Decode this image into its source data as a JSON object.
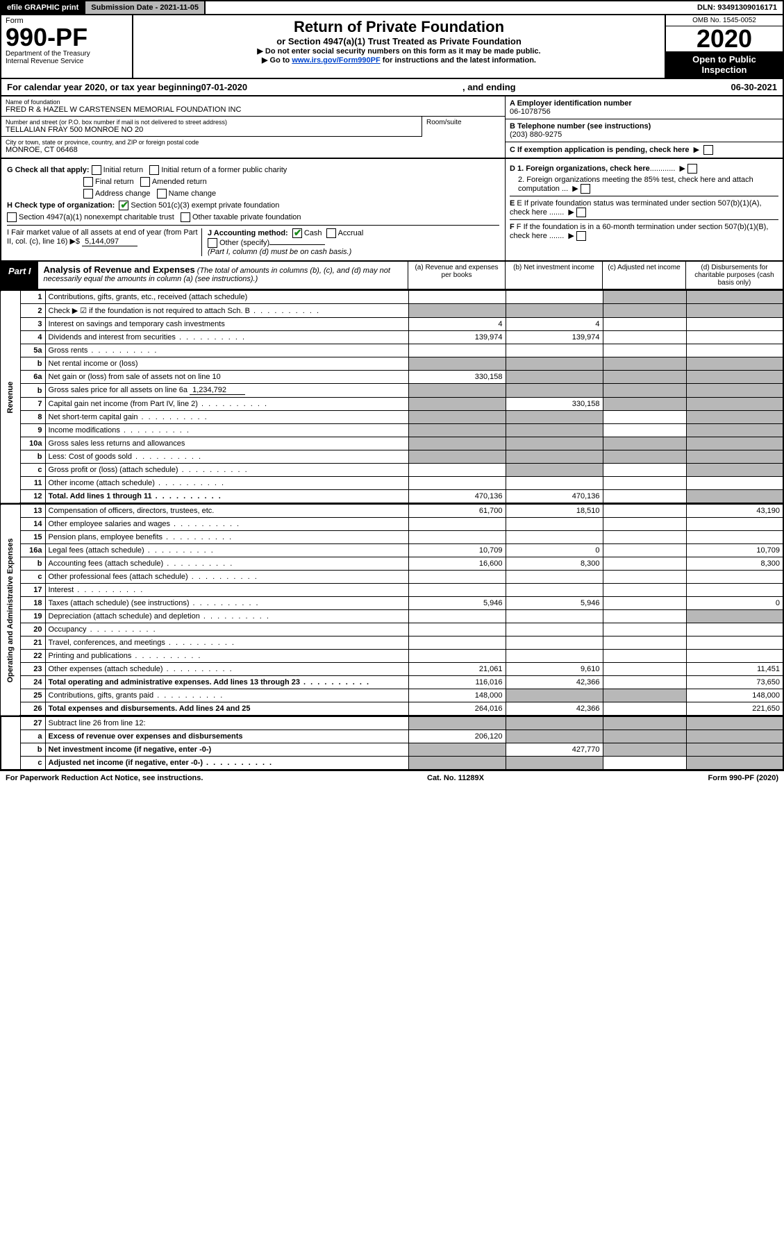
{
  "topbar": {
    "efile": "efile GRAPHIC print",
    "submission_label": "Submission Date - 2021-11-05",
    "dln": "DLN: 93491309016171"
  },
  "header": {
    "form_word": "Form",
    "form_number": "990-PF",
    "dept1": "Department of the Treasury",
    "dept2": "Internal Revenue Service",
    "title": "Return of Private Foundation",
    "subtitle": "or Section 4947(a)(1) Trust Treated as Private Foundation",
    "instr1": "▶ Do not enter social security numbers on this form as it may be made public.",
    "instr2_pre": "▶ Go to ",
    "instr2_link": "www.irs.gov/Form990PF",
    "instr2_post": " for instructions and the latest information.",
    "omb": "OMB No. 1545-0052",
    "year": "2020",
    "open_public": "Open to Public Inspection"
  },
  "calendar": {
    "pre": "For calendar year 2020, or tax year beginning ",
    "begin": "07-01-2020",
    "mid": ", and ending ",
    "end": "06-30-2021"
  },
  "entity": {
    "name_label": "Name of foundation",
    "name": "FRED R & HAZEL W CARSTENSEN MEMORIAL FOUNDATION INC",
    "addr_label": "Number and street (or P.O. box number if mail is not delivered to street address)",
    "addr": "TELLALIAN FRAY 500 MONROE No 20",
    "room_label": "Room/suite",
    "city_label": "City or town, state or province, country, and ZIP or foreign postal code",
    "city": "MONROE, CT  06468",
    "ein_label": "A Employer identification number",
    "ein": "06-1078756",
    "phone_label": "B Telephone number (see instructions)",
    "phone": "(203) 880-9275",
    "c_label": "C If exemption application is pending, check here"
  },
  "checks": {
    "g_label": "G Check all that apply:",
    "g_opts": [
      "Initial return",
      "Initial return of a former public charity",
      "Final return",
      "Amended return",
      "Address change",
      "Name change"
    ],
    "h_label": "H Check type of organization:",
    "h1": "Section 501(c)(3) exempt private foundation",
    "h2": "Section 4947(a)(1) nonexempt charitable trust",
    "h3": "Other taxable private foundation",
    "i_label": "I Fair market value of all assets at end of year (from Part II, col. (c), line 16) ▶$",
    "i_val": "5,144,097",
    "j_label": "J Accounting method:",
    "j_cash": "Cash",
    "j_accrual": "Accrual",
    "j_other": "Other (specify)",
    "j_note": "(Part I, column (d) must be on cash basis.)",
    "d1": "D 1. Foreign organizations, check here",
    "d2": "2. Foreign organizations meeting the 85% test, check here and attach computation ...",
    "e": "E If private foundation status was terminated under section 507(b)(1)(A), check here .......",
    "f": "F If the foundation is in a 60-month termination under section 507(b)(1)(B), check here ......."
  },
  "part1": {
    "label": "Part I",
    "title": "Analysis of Revenue and Expenses",
    "title_note": " (The total of amounts in columns (b), (c), and (d) may not necessarily equal the amounts in column (a) (see instructions).)",
    "cols": {
      "a": "(a) Revenue and expenses per books",
      "b": "(b) Net investment income",
      "c": "(c) Adjusted net income",
      "d": "(d) Disbursements for charitable purposes (cash basis only)"
    }
  },
  "sections": {
    "revenue": "Revenue",
    "opadmin": "Operating and Administrative Expenses"
  },
  "rows": [
    {
      "n": "1",
      "d": "Contributions, gifts, grants, etc., received (attach schedule)",
      "a": "",
      "b": "",
      "gc": true,
      "gd": true
    },
    {
      "n": "2",
      "d": "Check ▶ ☑ if the foundation is not required to attach Sch. B",
      "dots": true,
      "ga": true,
      "gb": true,
      "gc": true,
      "gd": true
    },
    {
      "n": "3",
      "d": "Interest on savings and temporary cash investments",
      "a": "4",
      "b": "4"
    },
    {
      "n": "4",
      "d": "Dividends and interest from securities",
      "dots": true,
      "a": "139,974",
      "b": "139,974"
    },
    {
      "n": "5a",
      "d": "Gross rents",
      "dots": true
    },
    {
      "n": "b",
      "d": "Net rental income or (loss)",
      "under": true,
      "ga": true,
      "gb": true,
      "gc": true,
      "gd": true
    },
    {
      "n": "6a",
      "d": "Net gain or (loss) from sale of assets not on line 10",
      "a": "330,158",
      "gb": true,
      "gc": true,
      "gd": true
    },
    {
      "n": "b",
      "d": "Gross sales price for all assets on line 6a",
      "inline_val": "1,234,792",
      "ga": true,
      "gb": true,
      "gc": true,
      "gd": true
    },
    {
      "n": "7",
      "d": "Capital gain net income (from Part IV, line 2)",
      "dots": true,
      "ga": true,
      "b": "330,158",
      "gc": true,
      "gd": true
    },
    {
      "n": "8",
      "d": "Net short-term capital gain",
      "dots": true,
      "ga": true,
      "gb": true,
      "gd": true
    },
    {
      "n": "9",
      "d": "Income modifications",
      "dots": true,
      "ga": true,
      "gb": true,
      "gd": true
    },
    {
      "n": "10a",
      "d": "Gross sales less returns and allowances",
      "under": true,
      "ga": true,
      "gb": true,
      "gc": true,
      "gd": true
    },
    {
      "n": "b",
      "d": "Less: Cost of goods sold",
      "dots": true,
      "under": true,
      "ga": true,
      "gb": true,
      "gc": true,
      "gd": true
    },
    {
      "n": "c",
      "d": "Gross profit or (loss) (attach schedule)",
      "dots": true,
      "gb": true,
      "gd": true
    },
    {
      "n": "11",
      "d": "Other income (attach schedule)",
      "dots": true
    },
    {
      "n": "12",
      "d": "Total. Add lines 1 through 11",
      "dots": true,
      "bold": true,
      "a": "470,136",
      "b": "470,136",
      "gd": true
    }
  ],
  "exprows": [
    {
      "n": "13",
      "d": "Compensation of officers, directors, trustees, etc.",
      "a": "61,700",
      "b": "18,510",
      "dd": "43,190"
    },
    {
      "n": "14",
      "d": "Other employee salaries and wages",
      "dots": true
    },
    {
      "n": "15",
      "d": "Pension plans, employee benefits",
      "dots": true
    },
    {
      "n": "16a",
      "d": "Legal fees (attach schedule)",
      "dots": true,
      "a": "10,709",
      "b": "0",
      "dd": "10,709"
    },
    {
      "n": "b",
      "d": "Accounting fees (attach schedule)",
      "dots": true,
      "a": "16,600",
      "b": "8,300",
      "dd": "8,300"
    },
    {
      "n": "c",
      "d": "Other professional fees (attach schedule)",
      "dots": true
    },
    {
      "n": "17",
      "d": "Interest",
      "dots": true
    },
    {
      "n": "18",
      "d": "Taxes (attach schedule) (see instructions)",
      "dots": true,
      "a": "5,946",
      "b": "5,946",
      "dd": "0"
    },
    {
      "n": "19",
      "d": "Depreciation (attach schedule) and depletion",
      "dots": true,
      "gd": true
    },
    {
      "n": "20",
      "d": "Occupancy",
      "dots": true
    },
    {
      "n": "21",
      "d": "Travel, conferences, and meetings",
      "dots": true
    },
    {
      "n": "22",
      "d": "Printing and publications",
      "dots": true
    },
    {
      "n": "23",
      "d": "Other expenses (attach schedule)",
      "dots": true,
      "a": "21,061",
      "b": "9,610",
      "dd": "11,451"
    },
    {
      "n": "24",
      "d": "Total operating and administrative expenses. Add lines 13 through 23",
      "dots": true,
      "bold": true,
      "a": "116,016",
      "b": "42,366",
      "dd": "73,650"
    },
    {
      "n": "25",
      "d": "Contributions, gifts, grants paid",
      "dots": true,
      "a": "148,000",
      "gb": true,
      "gc": true,
      "dd": "148,000"
    },
    {
      "n": "26",
      "d": "Total expenses and disbursements. Add lines 24 and 25",
      "bold": true,
      "a": "264,016",
      "b": "42,366",
      "dd": "221,650"
    }
  ],
  "botrows": [
    {
      "n": "27",
      "d": "Subtract line 26 from line 12:",
      "ga": true,
      "gb": true,
      "gc": true,
      "gd": true
    },
    {
      "n": "a",
      "d": "Excess of revenue over expenses and disbursements",
      "bold": true,
      "a": "206,120",
      "gb": true,
      "gc": true,
      "gd": true
    },
    {
      "n": "b",
      "d": "Net investment income (if negative, enter -0-)",
      "bold": true,
      "ga": true,
      "b": "427,770",
      "gc": true,
      "gd": true
    },
    {
      "n": "c",
      "d": "Adjusted net income (if negative, enter -0-)",
      "dots": true,
      "bold": true,
      "ga": true,
      "gb": true,
      "gd": true
    }
  ],
  "footer": {
    "left": "For Paperwork Reduction Act Notice, see instructions.",
    "mid": "Cat. No. 11289X",
    "right": "Form 990-PF (2020)"
  },
  "colors": {
    "grey": "#b8b8b8",
    "link": "#0044cc",
    "check": "#1a8a1a"
  }
}
